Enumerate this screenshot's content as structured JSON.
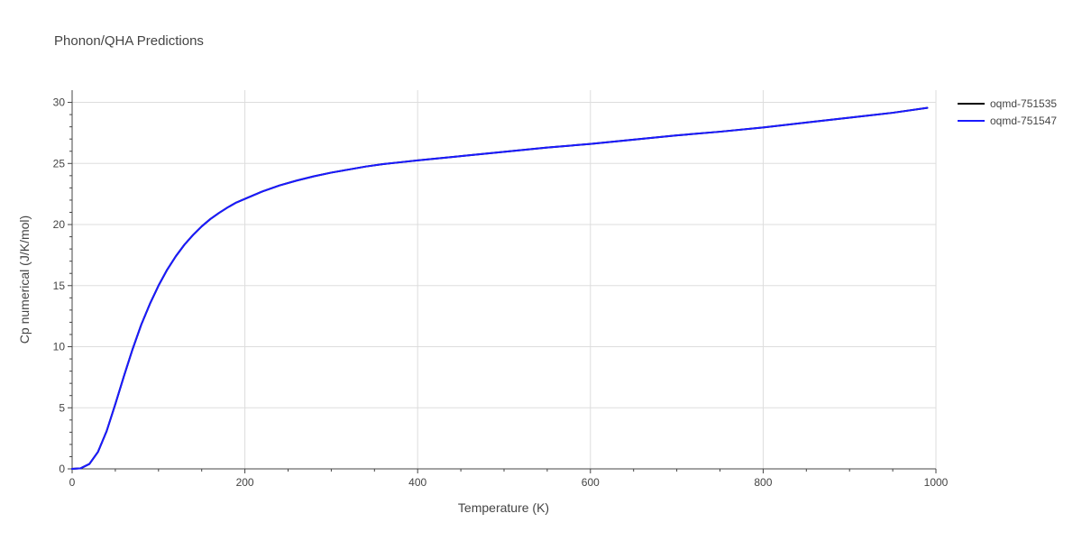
{
  "chart_data": {
    "type": "line",
    "title": "Phonon/QHA Predictions",
    "xlabel": "Temperature (K)",
    "ylabel": "Cp numerical (J/K/mol)",
    "xlim": [
      0,
      1000
    ],
    "ylim": [
      0,
      31
    ],
    "xticks": [
      0,
      200,
      400,
      600,
      800,
      1000
    ],
    "yticks": [
      0,
      5,
      10,
      15,
      20,
      25,
      30
    ],
    "grid": true,
    "legend_position": "top-right",
    "x": [
      0,
      10,
      20,
      30,
      40,
      50,
      60,
      70,
      80,
      90,
      100,
      110,
      120,
      130,
      140,
      150,
      160,
      170,
      180,
      190,
      200,
      220,
      240,
      260,
      280,
      300,
      320,
      340,
      360,
      380,
      400,
      450,
      500,
      550,
      600,
      650,
      700,
      750,
      800,
      850,
      900,
      950,
      990
    ],
    "series": [
      {
        "name": "oqmd-751535",
        "color": "#000000",
        "values": [
          0,
          0.05,
          0.4,
          1.4,
          3.1,
          5.3,
          7.6,
          9.8,
          11.8,
          13.5,
          15.0,
          16.3,
          17.4,
          18.35,
          19.15,
          19.85,
          20.45,
          20.95,
          21.4,
          21.8,
          22.1,
          22.7,
          23.2,
          23.6,
          23.95,
          24.25,
          24.5,
          24.75,
          24.95,
          25.1,
          25.25,
          25.6,
          25.95,
          26.3,
          26.6,
          26.95,
          27.3,
          27.6,
          27.95,
          28.35,
          28.75,
          29.15,
          29.55
        ]
      },
      {
        "name": "oqmd-751547",
        "color": "#1a1aff",
        "values": [
          0,
          0.05,
          0.4,
          1.4,
          3.1,
          5.3,
          7.6,
          9.8,
          11.8,
          13.5,
          15.0,
          16.3,
          17.4,
          18.35,
          19.15,
          19.85,
          20.45,
          20.95,
          21.4,
          21.8,
          22.1,
          22.7,
          23.2,
          23.6,
          23.95,
          24.25,
          24.5,
          24.75,
          24.95,
          25.1,
          25.25,
          25.6,
          25.95,
          26.3,
          26.6,
          26.95,
          27.3,
          27.6,
          27.95,
          28.35,
          28.75,
          29.15,
          29.55
        ]
      }
    ]
  }
}
